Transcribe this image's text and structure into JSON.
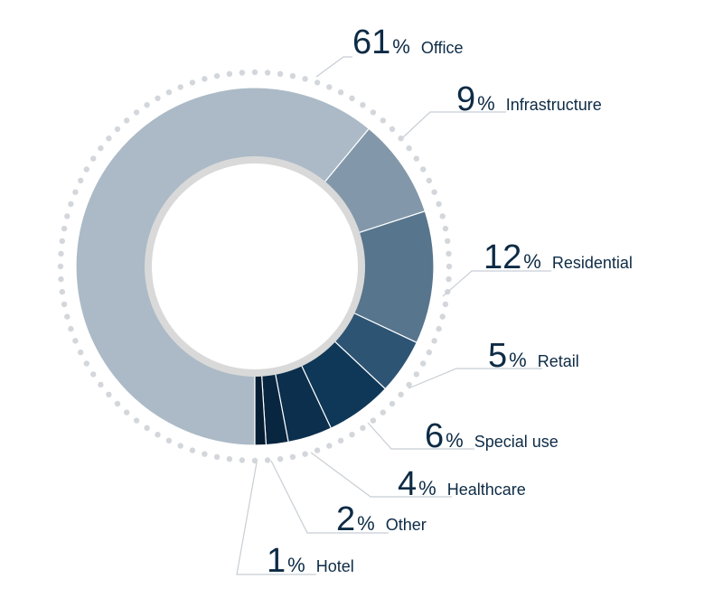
{
  "chart_data": {
    "type": "pie",
    "donut": true,
    "title": "",
    "slices": [
      {
        "label": "Office",
        "value": 61,
        "display": "61",
        "color": "#abbac6"
      },
      {
        "label": "Infrastructure",
        "value": 9,
        "display": "9",
        "color": "#8298aa"
      },
      {
        "label": "Residential",
        "value": 12,
        "display": "12",
        "color": "#57758d"
      },
      {
        "label": "Retail",
        "value": 5,
        "display": "5",
        "color": "#2e5474"
      },
      {
        "label": "Special use",
        "value": 6,
        "display": "6",
        "color": "#0f3858"
      },
      {
        "label": "Healthcare",
        "value": 4,
        "display": "4",
        "color": "#0b2f4d"
      },
      {
        "label": "Other",
        "value": 2,
        "display": "2",
        "color": "#082640"
      },
      {
        "label": "Hotel",
        "value": 1,
        "display": "1",
        "color": "#061e33"
      }
    ],
    "percent_sign": "%",
    "legend": "none",
    "colors": {
      "label_text": "#0d2b45",
      "leader_line": "#c8ced4",
      "dots": "#d3d7db"
    }
  }
}
